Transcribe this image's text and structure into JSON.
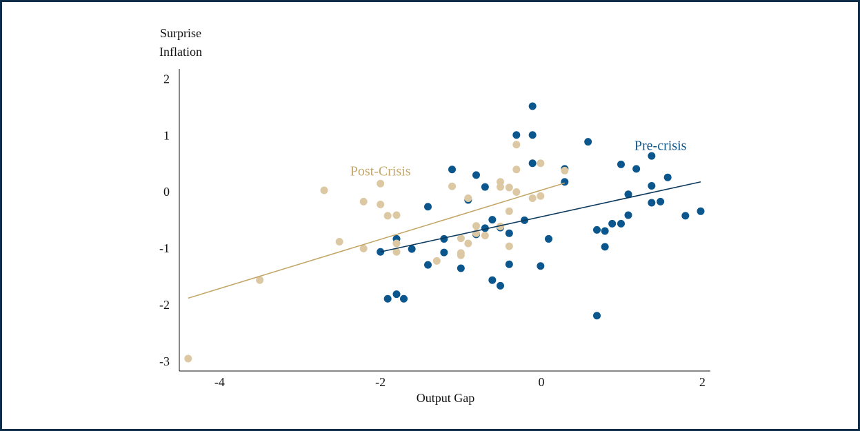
{
  "chart_data": {
    "type": "scatter",
    "x_label": "Output Gap",
    "y_label": [
      "Surprise",
      "Inflation"
    ],
    "xlim": [
      -4.5,
      2.1
    ],
    "xticks": [
      -4,
      -2,
      0,
      2
    ],
    "ylim": [
      -3.15,
      2.2
    ],
    "yticks": [
      2,
      1,
      0,
      -1,
      -2,
      -3
    ],
    "grid": false,
    "series": [
      {
        "name": "Pre-crisis",
        "color": "#0b568c",
        "line_color": "#0d3a5c",
        "x": [
          -0.11,
          -0.11,
          -0.31,
          -0.11,
          0.58,
          0.29,
          0.29,
          0.99,
          1.18,
          1.37,
          1.57,
          1.37,
          1.08,
          1.37,
          1.48,
          1.98,
          1.79,
          1.08,
          0.99,
          0.88,
          0.69,
          0.79,
          0.79,
          0.69,
          0.09,
          -0.01,
          -0.21,
          -0.4,
          -0.4,
          -0.51,
          -0.61,
          -0.7,
          -0.61,
          -0.51,
          -0.81,
          -0.81,
          -0.7,
          -0.91,
          -1.11,
          -1.21,
          -1.21,
          -1.0,
          -1.41,
          -1.41,
          -1.61,
          -1.8,
          -1.8,
          -1.91,
          -1.71,
          -2.0
        ],
        "values": [
          1.54,
          1.03,
          1.03,
          0.53,
          0.91,
          0.43,
          0.2,
          0.51,
          0.43,
          0.66,
          0.28,
          0.13,
          -0.02,
          -0.17,
          -0.15,
          -0.32,
          -0.4,
          -0.39,
          -0.54,
          -0.54,
          -0.65,
          -0.67,
          -0.95,
          -2.17,
          -0.81,
          -1.29,
          -0.48,
          -0.71,
          -1.26,
          -0.61,
          -0.47,
          -0.62,
          -1.54,
          -1.64,
          -0.73,
          0.32,
          0.11,
          -0.12,
          0.42,
          -1.05,
          -0.81,
          -1.33,
          -0.24,
          -1.27,
          -0.99,
          -0.81,
          -1.79,
          -1.87,
          -1.87,
          -1.04
        ],
        "fit_x": [
          -2.0,
          1.98
        ],
        "fit_y": [
          -1.04,
          0.2
        ]
      },
      {
        "name": "Post-Crisis",
        "color": "#dcc8a2",
        "line_color": "#c4a86a",
        "x": [
          -4.39,
          -3.5,
          -2.7,
          -2.51,
          -2.21,
          -2.21,
          -2.0,
          -2.0,
          -1.91,
          -1.8,
          -1.8,
          -1.8,
          -1.3,
          -1.11,
          -1.0,
          -1.0,
          -1.0,
          -0.91,
          -0.91,
          -0.81,
          -0.81,
          -0.7,
          -0.51,
          -0.51,
          -0.51,
          -0.4,
          -0.4,
          -0.4,
          -0.31,
          -0.31,
          -0.31,
          -0.11,
          -0.01,
          -0.01,
          0.29
        ],
        "values": [
          -2.93,
          -1.54,
          0.05,
          -0.86,
          -0.98,
          -0.15,
          -0.2,
          0.17,
          -0.4,
          -0.39,
          -0.89,
          -1.04,
          -1.2,
          0.12,
          -0.8,
          -1.06,
          -1.1,
          -0.09,
          -0.89,
          -0.58,
          -0.71,
          -0.75,
          0.2,
          0.11,
          -0.59,
          0.1,
          -0.32,
          -0.94,
          0.86,
          0.42,
          0.02,
          -0.09,
          0.53,
          -0.05,
          0.4
        ],
        "fit_x": [
          -4.39,
          0.29
        ],
        "fit_y": [
          -1.86,
          0.18
        ]
      }
    ],
    "annotations": [
      {
        "text": "Pre-crisis",
        "x": 1.48,
        "y": 0.82,
        "series": 0
      },
      {
        "text": "Post-Crisis",
        "x": -2.0,
        "y": 0.37,
        "series": 1
      }
    ]
  }
}
